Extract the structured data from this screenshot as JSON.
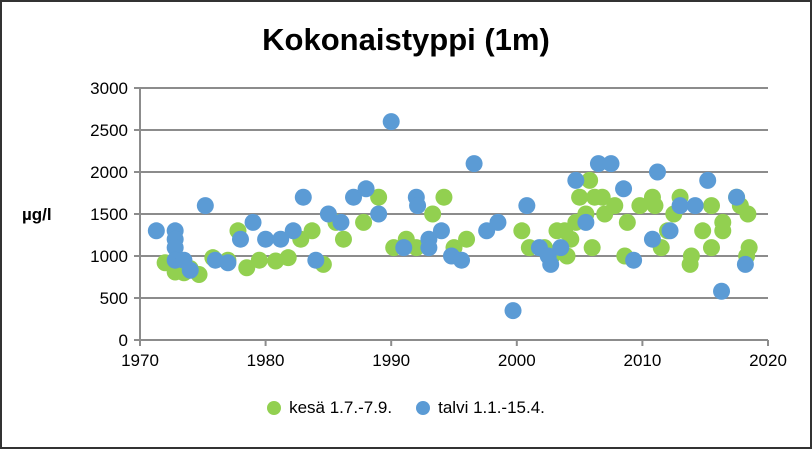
{
  "chart_data": {
    "type": "scatter",
    "title": "Kokonaistyppi (1m)",
    "xlabel": "",
    "ylabel": "µg/l",
    "xlim": [
      1970,
      2020
    ],
    "ylim": [
      0,
      3000
    ],
    "xticks": [
      "1970",
      "1980",
      "1990",
      "2000",
      "2010",
      "2020"
    ],
    "yticks": [
      "0",
      "500",
      "1000",
      "1500",
      "2000",
      "2500",
      "3000"
    ],
    "grid": "horizontal",
    "legend_position": "bottom",
    "series": [
      {
        "name": "kesä 1.7.-7.9.",
        "color": "#92d050",
        "points": [
          [
            1972.0,
            920
          ],
          [
            1972.8,
            810
          ],
          [
            1973.5,
            800
          ],
          [
            1974.0,
            850
          ],
          [
            1974.7,
            780
          ],
          [
            1975.8,
            980
          ],
          [
            1977.0,
            950
          ],
          [
            1977.8,
            1300
          ],
          [
            1978.5,
            860
          ],
          [
            1979.5,
            950
          ],
          [
            1980.8,
            940
          ],
          [
            1981.8,
            980
          ],
          [
            1982.8,
            1200
          ],
          [
            1983.7,
            1300
          ],
          [
            1984.6,
            900
          ],
          [
            1985.6,
            1400
          ],
          [
            1986.2,
            1200
          ],
          [
            1987.8,
            1400
          ],
          [
            1989.0,
            1700
          ],
          [
            1990.2,
            1100
          ],
          [
            1991.2,
            1200
          ],
          [
            1992.0,
            1100
          ],
          [
            1993.3,
            1500
          ],
          [
            1994.2,
            1700
          ],
          [
            1995.0,
            1100
          ],
          [
            1996.0,
            1200
          ],
          [
            2000.4,
            1300
          ],
          [
            2001.0,
            1100
          ],
          [
            2002.2,
            1100
          ],
          [
            2002.8,
            1000
          ],
          [
            2003.2,
            1300
          ],
          [
            2003.8,
            1300
          ],
          [
            2004.0,
            1000
          ],
          [
            2004.3,
            1200
          ],
          [
            2004.7,
            1400
          ],
          [
            2005.0,
            1700
          ],
          [
            2005.5,
            1500
          ],
          [
            2005.8,
            1900
          ],
          [
            2006.0,
            1100
          ],
          [
            2006.2,
            1700
          ],
          [
            2006.8,
            1700
          ],
          [
            2007.0,
            1500
          ],
          [
            2007.8,
            1600
          ],
          [
            2008.6,
            1000
          ],
          [
            2008.8,
            1400
          ],
          [
            2009.8,
            1600
          ],
          [
            2010.8,
            1700
          ],
          [
            2011.0,
            1600
          ],
          [
            2011.5,
            1100
          ],
          [
            2012.0,
            1300
          ],
          [
            2012.5,
            1500
          ],
          [
            2013.0,
            1700
          ],
          [
            2013.8,
            900
          ],
          [
            2013.9,
            1000
          ],
          [
            2014.8,
            1300
          ],
          [
            2015.5,
            1100
          ],
          [
            2015.5,
            1600
          ],
          [
            2016.4,
            1400
          ],
          [
            2016.4,
            1300
          ],
          [
            2017.5,
            1700
          ],
          [
            2017.8,
            1600
          ],
          [
            2018.4,
            1500
          ],
          [
            2018.5,
            1100
          ],
          [
            2018.3,
            1000
          ]
        ]
      },
      {
        "name": "talvi 1.1.-15.4.",
        "color": "#5b9bd5",
        "points": [
          [
            1971.3,
            1300
          ],
          [
            1972.8,
            1300
          ],
          [
            1972.8,
            1200
          ],
          [
            1972.8,
            1100
          ],
          [
            1972.8,
            950
          ],
          [
            1973.5,
            950
          ],
          [
            1974.0,
            830
          ],
          [
            1975.2,
            1600
          ],
          [
            1976.0,
            950
          ],
          [
            1977.0,
            920
          ],
          [
            1978.0,
            1200
          ],
          [
            1979.0,
            1400
          ],
          [
            1980.0,
            1200
          ],
          [
            1981.2,
            1200
          ],
          [
            1982.2,
            1300
          ],
          [
            1983.0,
            1700
          ],
          [
            1984.0,
            950
          ],
          [
            1985.0,
            1500
          ],
          [
            1986.0,
            1400
          ],
          [
            1987.0,
            1700
          ],
          [
            1988.0,
            1800
          ],
          [
            1989.0,
            1500
          ],
          [
            1990.0,
            2600
          ],
          [
            1991.0,
            1100
          ],
          [
            1992.0,
            1700
          ],
          [
            1992.1,
            1600
          ],
          [
            1993.0,
            1200
          ],
          [
            1993.0,
            1100
          ],
          [
            1994.0,
            1300
          ],
          [
            1994.8,
            1000
          ],
          [
            1995.6,
            950
          ],
          [
            1996.6,
            2100
          ],
          [
            1997.6,
            1300
          ],
          [
            1998.5,
            1400
          ],
          [
            1999.7,
            350
          ],
          [
            2000.8,
            1600
          ],
          [
            2001.8,
            1100
          ],
          [
            2002.5,
            1000
          ],
          [
            2002.7,
            900
          ],
          [
            2003.5,
            1100
          ],
          [
            2004.7,
            1900
          ],
          [
            2005.5,
            1400
          ],
          [
            2006.5,
            2100
          ],
          [
            2007.5,
            2100
          ],
          [
            2008.5,
            1800
          ],
          [
            2009.3,
            950
          ],
          [
            2010.8,
            1200
          ],
          [
            2011.2,
            2000
          ],
          [
            2012.2,
            1300
          ],
          [
            2013.0,
            1600
          ],
          [
            2014.2,
            1600
          ],
          [
            2015.2,
            1900
          ],
          [
            2016.3,
            580
          ],
          [
            2017.5,
            1700
          ],
          [
            2018.2,
            900
          ]
        ]
      }
    ]
  }
}
